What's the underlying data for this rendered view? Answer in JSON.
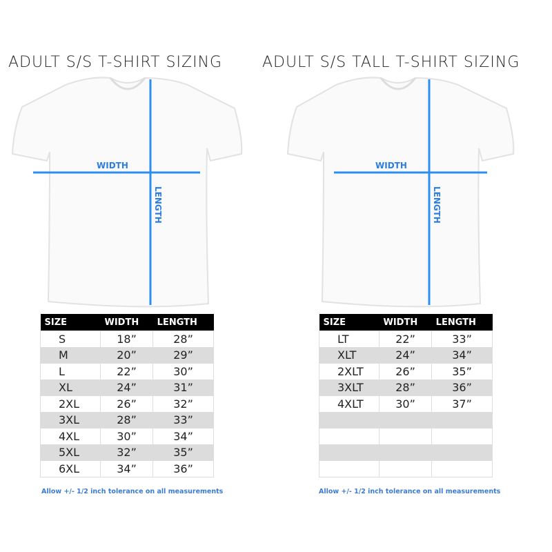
{
  "colors": {
    "measure_line": "#2b8ef0",
    "header_bg": "#000000",
    "alt_row": "#dcdcdc",
    "note": "#3a7bd5"
  },
  "charts": [
    {
      "title": "ADULT S/S T-SHIRT SIZING",
      "width_label": "WIDTH",
      "length_label": "LENGTH",
      "headers": [
        "SIZE",
        "WIDTH",
        "LENGTH"
      ],
      "rows": [
        [
          "S",
          "18”",
          "28”"
        ],
        [
          "M",
          "20”",
          "29”"
        ],
        [
          "L",
          "22”",
          "30”"
        ],
        [
          "XL",
          "24”",
          "31”"
        ],
        [
          "2XL",
          "26”",
          "32”"
        ],
        [
          "3XL",
          "28”",
          "33”"
        ],
        [
          "4XL",
          "30”",
          "34”"
        ],
        [
          "5XL",
          "32”",
          "35”"
        ],
        [
          "6XL",
          "34”",
          "36”"
        ]
      ],
      "note": "Allow +/- 1/2 inch tolerance on all measurements"
    },
    {
      "title": "ADULT S/S TALL T-SHIRT SIZING",
      "width_label": "WIDTH",
      "length_label": "LENGTH",
      "headers": [
        "SIZE",
        "WIDTH",
        "LENGTH"
      ],
      "rows": [
        [
          "LT",
          "22”",
          "33”"
        ],
        [
          "XLT",
          "24”",
          "34”"
        ],
        [
          "2XLT",
          "26”",
          "35”"
        ],
        [
          "3XLT",
          "28”",
          "36”"
        ],
        [
          "4XLT",
          "30”",
          "37”"
        ],
        [
          "",
          "",
          ""
        ],
        [
          "",
          "",
          ""
        ],
        [
          "",
          "",
          ""
        ],
        [
          "",
          "",
          ""
        ]
      ],
      "note": "Allow +/- 1/2 inch tolerance on all measurements"
    }
  ]
}
